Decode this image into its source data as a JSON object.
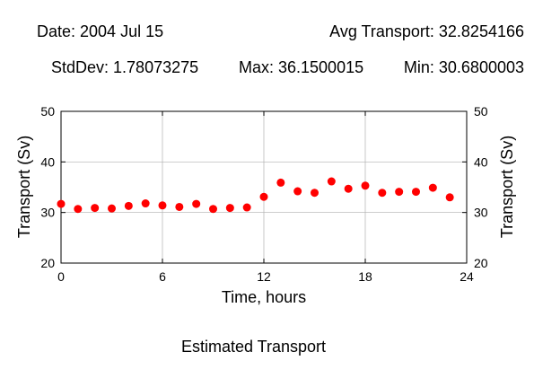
{
  "header": {
    "date": "Date: 2004 Jul 15",
    "avg_transport": "Avg Transport: 32.8254166",
    "stddev": "StdDev: 1.78073275",
    "max": "Max: 36.1500015",
    "min": "Min: 30.6800003"
  },
  "caption": "Estimated Transport",
  "chart_data": {
    "type": "scatter",
    "xlabel": "Time, hours",
    "ylabel": "Transport (Sv)",
    "ylabel_right": "Transport (Sv)",
    "xlim": [
      0,
      24
    ],
    "ylim": [
      20,
      50
    ],
    "xticks": [
      0,
      6,
      12,
      18,
      24
    ],
    "yticks": [
      20,
      30,
      40,
      50
    ],
    "grid": true,
    "marker_color": "#ff0000",
    "x": [
      0,
      1,
      2,
      3,
      4,
      5,
      6,
      7,
      8,
      9,
      10,
      11,
      12,
      13,
      14,
      15,
      16,
      17,
      18,
      19,
      20,
      21,
      22,
      23
    ],
    "y": [
      31.7,
      30.7,
      30.9,
      30.8,
      31.3,
      31.8,
      31.4,
      31.1,
      31.7,
      30.7,
      30.9,
      31.0,
      33.1,
      35.9,
      34.2,
      33.9,
      36.15,
      34.7,
      35.3,
      33.9,
      34.1,
      34.1,
      34.9,
      33.0
    ]
  }
}
